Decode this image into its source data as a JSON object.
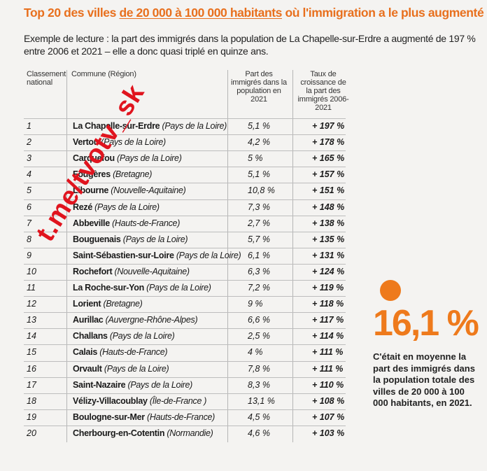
{
  "title": {
    "part1": "Top 20 des villes ",
    "part2": "de 20 000 à 100 000 habitants",
    "part3": " où l'immigration a le plus augmenté"
  },
  "intro": "Exemple de lecture : la part des immigrés dans la population de La Chapelle-sur-Erdre a augmenté de 197 % entre 2006 et 2021 – elle a donc quasi triplé en quinze ans.",
  "headers": {
    "rank": "Classement national",
    "commune": "Commune (Région)",
    "share": "Part des immigrés dans la population en 2021",
    "growth": "Taux de croissance de la part des immigrés 2006-2021"
  },
  "rows": [
    {
      "rank": "1",
      "commune": "La Chapelle-sur-Erdre",
      "region": "(Pays de la Loire)",
      "share": "5,1 %",
      "growth": "+ 197 %"
    },
    {
      "rank": "2",
      "commune": "Vertou",
      "region": "(Pays de la Loire)",
      "share": "4,2 %",
      "growth": "+ 178 %"
    },
    {
      "rank": "3",
      "commune": "Carquefou",
      "region": "(Pays de la Loire)",
      "share": "5 %",
      "growth": "+ 165 %"
    },
    {
      "rank": "4",
      "commune": "Fougères",
      "region": "(Bretagne)",
      "share": "5,1 %",
      "growth": "+ 157 %"
    },
    {
      "rank": "5",
      "commune": "Libourne",
      "region": "(Nouvelle-Aquitaine)",
      "share": "10,8 %",
      "growth": "+ 151 %"
    },
    {
      "rank": "6",
      "commune": "Rezé",
      "region": "(Pays de la Loire)",
      "share": "7,3 %",
      "growth": "+ 148 %"
    },
    {
      "rank": "7",
      "commune": "Abbeville",
      "region": "(Hauts-de-France)",
      "share": "2,7 %",
      "growth": "+ 138 %"
    },
    {
      "rank": "8",
      "commune": "Bouguenais",
      "region": "(Pays de la Loire)",
      "share": "5,7 %",
      "growth": "+ 135 %"
    },
    {
      "rank": "9",
      "commune": "Saint-Sébastien-sur-Loire",
      "region": "(Pays de la Loire)",
      "share": "6,1 %",
      "growth": "+ 131 %"
    },
    {
      "rank": "10",
      "commune": "Rochefort",
      "region": "(Nouvelle-Aquitaine)",
      "share": "6,3 %",
      "growth": "+ 124 %"
    },
    {
      "rank": "11",
      "commune": "La Roche-sur-Yon",
      "region": "(Pays de la Loire)",
      "share": "7,2 %",
      "growth": "+ 119 %"
    },
    {
      "rank": "12",
      "commune": "Lorient",
      "region": "(Bretagne)",
      "share": "9 %",
      "growth": "+ 118 %"
    },
    {
      "rank": "13",
      "commune": "Aurillac",
      "region": "(Auvergne-Rhône-Alpes)",
      "share": "6,6 %",
      "growth": "+ 117 %"
    },
    {
      "rank": "14",
      "commune": "Challans",
      "region": "(Pays de la Loire)",
      "share": "2,5 %",
      "growth": "+ 114 %"
    },
    {
      "rank": "15",
      "commune": "Calais",
      "region": "(Hauts-de-France)",
      "share": "4 %",
      "growth": "+ 111 %"
    },
    {
      "rank": "16",
      "commune": "Orvault",
      "region": "(Pays de la Loire)",
      "share": "7,8 %",
      "growth": "+ 111 %"
    },
    {
      "rank": "17",
      "commune": "Saint-Nazaire",
      "region": "(Pays de la Loire)",
      "share": "8,3 %",
      "growth": "+ 110 %"
    },
    {
      "rank": "18",
      "commune": "Vélizy-Villacoublay",
      "region": "(Île-de-France )",
      "share": "13,1 %",
      "growth": "+ 108 %"
    },
    {
      "rank": "19",
      "commune": "Boulogne-sur-Mer",
      "region": "(Hauts-de-France)",
      "share": "4,5 %",
      "growth": "+ 107 %"
    },
    {
      "rank": "20",
      "commune": "Cherbourg-en-Cotentin",
      "region": "(Normandie)",
      "share": "4,6 %",
      "growth": "+ 103 %"
    }
  ],
  "highlight": {
    "value": "16,1 %",
    "caption": "C'était en moyenne la part des immigrés dans la population totale des villes de 20 000 à 100 000 habitants, en 2021."
  },
  "watermark": "t.me/tvotv_sk",
  "colors": {
    "accent": "#ee7a1c",
    "watermark": "#e0141e"
  }
}
